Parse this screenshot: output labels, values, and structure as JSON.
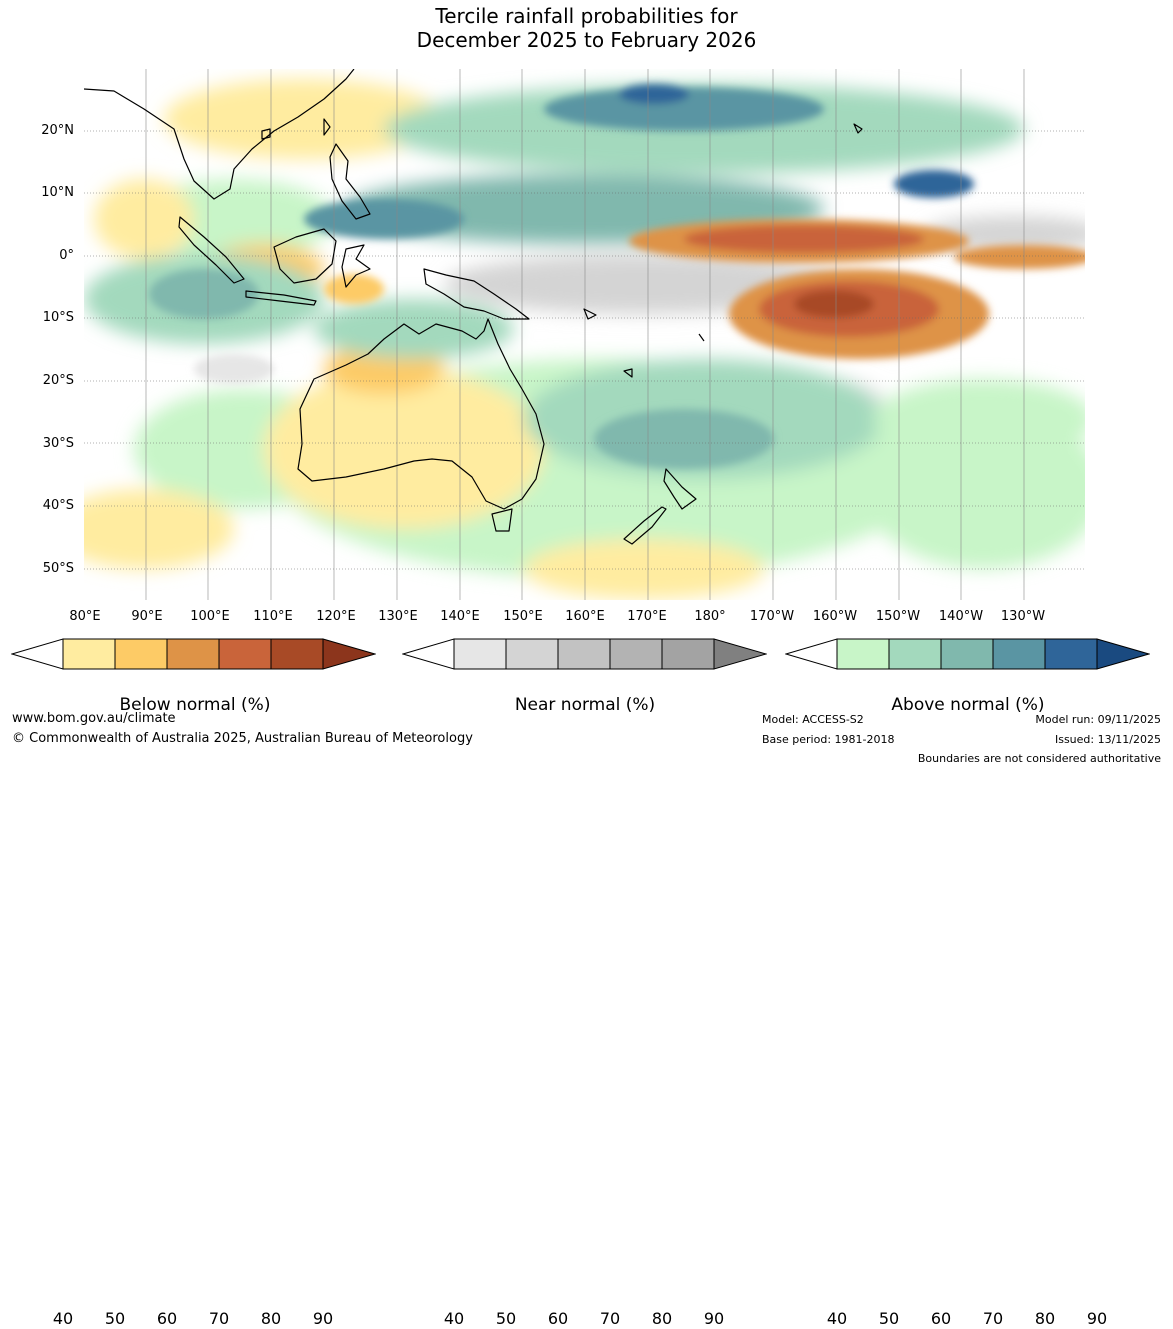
{
  "title": {
    "line1": "Tercile rainfall probabilities for",
    "line2": "December 2025 to February 2026"
  },
  "latitude_labels": [
    "20°N",
    "10°N",
    "0°",
    "10°S",
    "20°S",
    "30°S",
    "40°S",
    "50°S"
  ],
  "longitude_labels": [
    "80°E",
    "90°E",
    "100°E",
    "110°E",
    "120°E",
    "130°E",
    "140°E",
    "150°E",
    "160°E",
    "170°E",
    "180°",
    "170°W",
    "160°W",
    "150°W",
    "140°W",
    "130°W"
  ],
  "legends": [
    {
      "label": "Below normal (%)",
      "ticks": [
        "40",
        "50",
        "60",
        "70",
        "80",
        "90"
      ],
      "colors": [
        "#ffffff",
        "#ffeca0",
        "#fdcb66",
        "#de9347",
        "#c9643a",
        "#a84a26",
        "#8c351c"
      ]
    },
    {
      "label": "Near normal (%)",
      "ticks": [
        "40",
        "50",
        "60",
        "70",
        "80",
        "90"
      ],
      "colors": [
        "#ffffff",
        "#e6e6e6",
        "#d4d4d4",
        "#c2c2c2",
        "#b3b3b3",
        "#a3a3a3",
        "#808080"
      ]
    },
    {
      "label": "Above normal (%)",
      "ticks": [
        "40",
        "50",
        "60",
        "70",
        "80",
        "90"
      ],
      "colors": [
        "#ffffff",
        "#c8f5c8",
        "#a3d9bd",
        "#80b8ad",
        "#5a95a3",
        "#2f6599",
        "#1a4a80"
      ]
    }
  ],
  "footer": {
    "website": "www.bom.gov.au/climate",
    "copyright": "© Commonwealth of Australia 2025, Australian Bureau of Meteorology",
    "model": "Model: ACCESS-S2",
    "base_period": "Base period: 1981-2018",
    "model_run": "Model run: 09/11/2025",
    "issued": "Issued: 13/11/2025",
    "disclaimer": "Boundaries are not considered authoritative"
  },
  "colors": {
    "below": "#fdcb66",
    "below_strong": "#c9643a",
    "near": "#d4d4d4",
    "above": "#c8f5c8",
    "above_strong": "#5a95a3",
    "coast": "#000000"
  }
}
